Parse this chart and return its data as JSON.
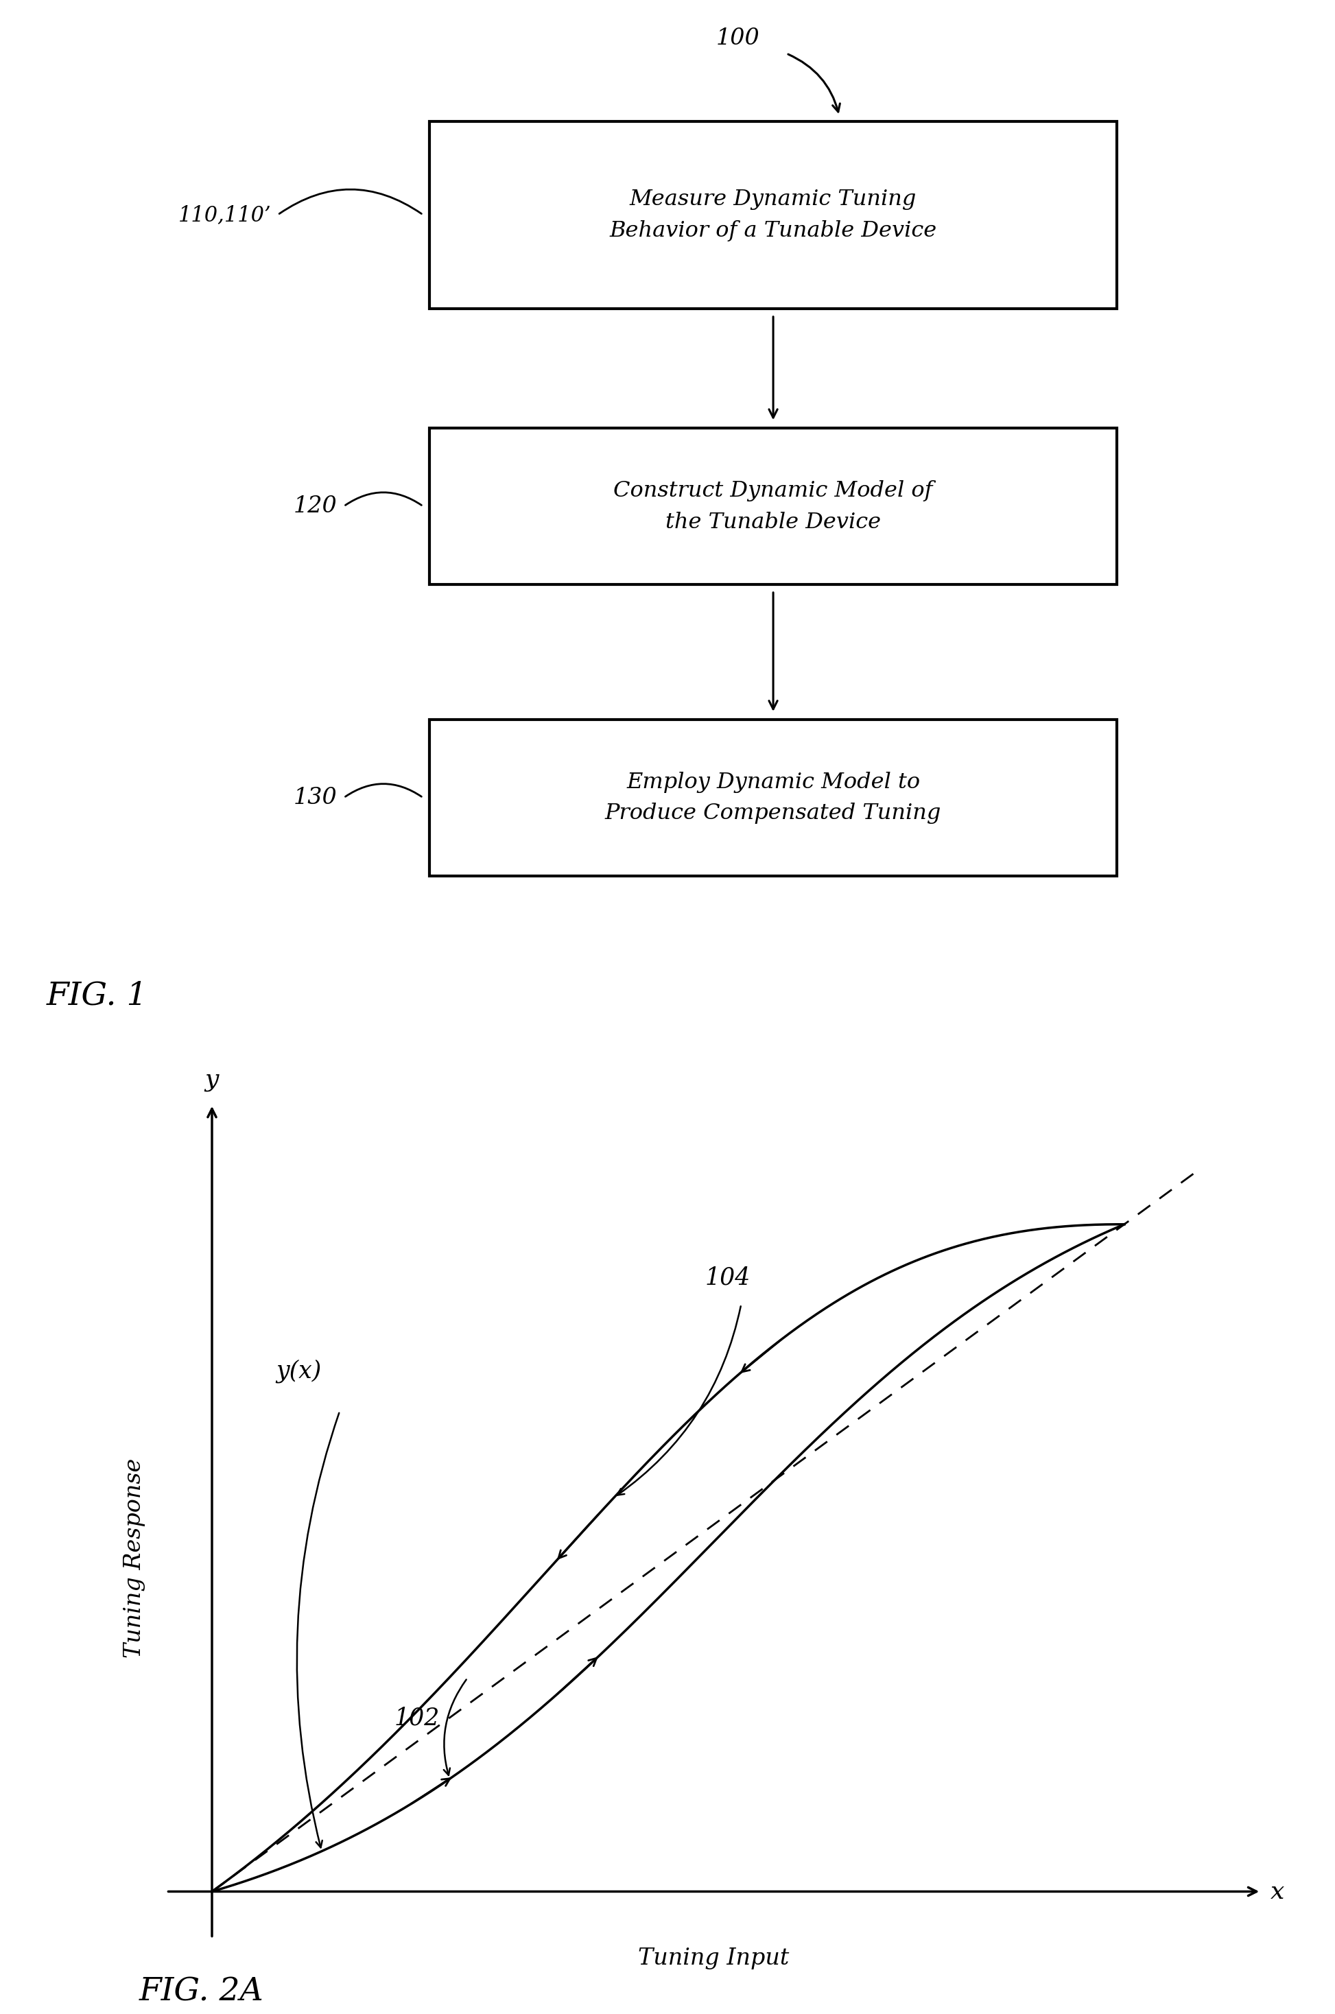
{
  "fig1": {
    "title": "FIG. 1",
    "label_100": "100",
    "label_110": "110,110’",
    "label_120": "120",
    "label_130": "130",
    "box1_text": "Measure Dynamic Tuning\nBehavior of a Tunable Device",
    "box2_text": "Construct Dynamic Model of\nthe Tunable Device",
    "box3_text": "Employ Dynamic Model to\nProduce Compensated Tuning"
  },
  "fig2a": {
    "title": "FIG. 2A",
    "xlabel": "Tuning Input",
    "ylabel": "Tuning Response",
    "x_axis_label": "x",
    "y_axis_label": "y",
    "label_102": "102",
    "label_104": "104",
    "label_yx": "y(x)"
  },
  "background_color": "#ffffff",
  "line_color": "#000000"
}
